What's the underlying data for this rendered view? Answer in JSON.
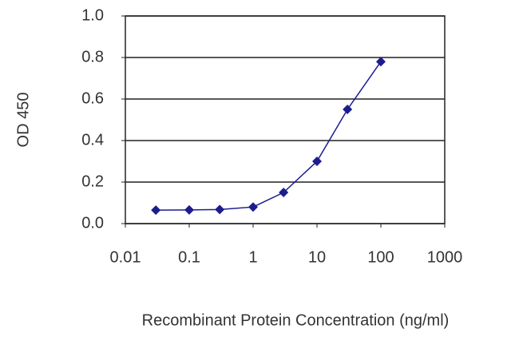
{
  "chart_data": {
    "type": "line",
    "x_label": "Recombinant Protein Concentration (ng/ml)",
    "y_label": "OD 450",
    "x": [
      0.03,
      0.1,
      0.3,
      1,
      3,
      10,
      30,
      100
    ],
    "series": [
      {
        "name": "OD 450",
        "color": "#1c1c8f",
        "values": [
          0.065,
          0.066,
          0.068,
          0.08,
          0.15,
          0.3,
          0.55,
          0.78
        ]
      }
    ],
    "xscale": "log",
    "xlim": [
      0.01,
      1000
    ],
    "xticks": [
      0.01,
      0.1,
      1,
      10,
      100,
      1000
    ],
    "ylim": [
      0,
      1
    ],
    "yticks": [
      {
        "value": 0,
        "label": "0.0"
      },
      0.2,
      0.4,
      0.6,
      0.8,
      {
        "value": 1,
        "label": "1.0"
      }
    ],
    "grid": true
  }
}
